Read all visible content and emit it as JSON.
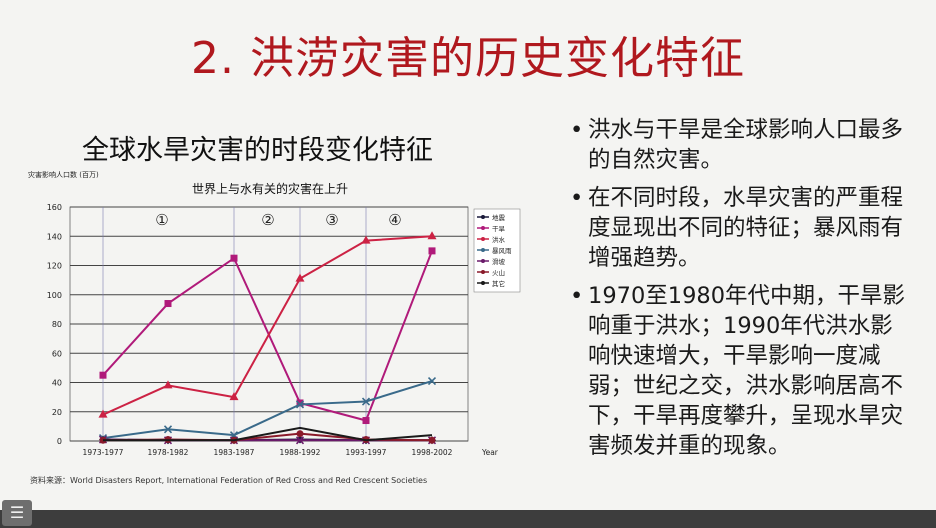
{
  "slide": {
    "title": "2. 洪涝灾害的历史变化特征",
    "chart_heading": "全球水旱灾害的时段变化特征",
    "bullets": [
      "洪水与干旱是全球影响人口最多的自然灾害。",
      "在不同时段，水旱灾害的严重程度显现出不同的特征；暴风雨有增强趋势。",
      "1970至1980年代中期，干旱影响重于洪水；1990年代洪水影响快速增大，干旱影响一度减弱；世纪之交，洪水影响居高不下，干旱再度攀升，呈现水旱灾害频发并重的现象。"
    ],
    "menu_icon": "list-icon"
  },
  "chart_data": {
    "type": "line",
    "title": "世界上与水有关的灾害在上升",
    "ylabel": "灾害影响人口数 (百万)",
    "xlabel": "Year",
    "ylim": [
      0,
      160
    ],
    "yticks": [
      0,
      20,
      40,
      60,
      80,
      100,
      120,
      140,
      160
    ],
    "categories": [
      "1973-1977",
      "1978-1982",
      "1983-1987",
      "1988-1992",
      "1993-1997",
      "1998-2002"
    ],
    "period_markers": [
      "①",
      "②",
      "③",
      "④"
    ],
    "grid": true,
    "legend_position": "right",
    "source": "资料来源：World Disasters Report, International Federation of Red Cross and Red Crescent Societies",
    "series": [
      {
        "name": "地震",
        "color": "#1a1a3a",
        "marker": "diamond",
        "values": [
          1,
          0.5,
          0.5,
          1,
          0.5,
          0.5
        ]
      },
      {
        "name": "干旱",
        "color": "#b01a7a",
        "marker": "square",
        "values": [
          45,
          94,
          125,
          26,
          14,
          130
        ]
      },
      {
        "name": "洪水",
        "color": "#cc2244",
        "marker": "triangle",
        "values": [
          18,
          38,
          30,
          111,
          137,
          140
        ]
      },
      {
        "name": "暴风雨",
        "color": "#3a6a8a",
        "marker": "x",
        "values": [
          2,
          8,
          4,
          25,
          27,
          41
        ]
      },
      {
        "name": "滑坡",
        "color": "#6a1a6a",
        "marker": "x",
        "values": [
          1,
          0.5,
          0.5,
          0.5,
          0.5,
          0.5
        ]
      },
      {
        "name": "火山",
        "color": "#8a1a2a",
        "marker": "circle",
        "values": [
          0.5,
          1,
          0.5,
          5,
          1,
          0.5
        ]
      },
      {
        "name": "其它",
        "color": "#1a1a1a",
        "marker": "line",
        "values": [
          0.5,
          0.5,
          0.5,
          9,
          0.5,
          4
        ]
      }
    ]
  }
}
